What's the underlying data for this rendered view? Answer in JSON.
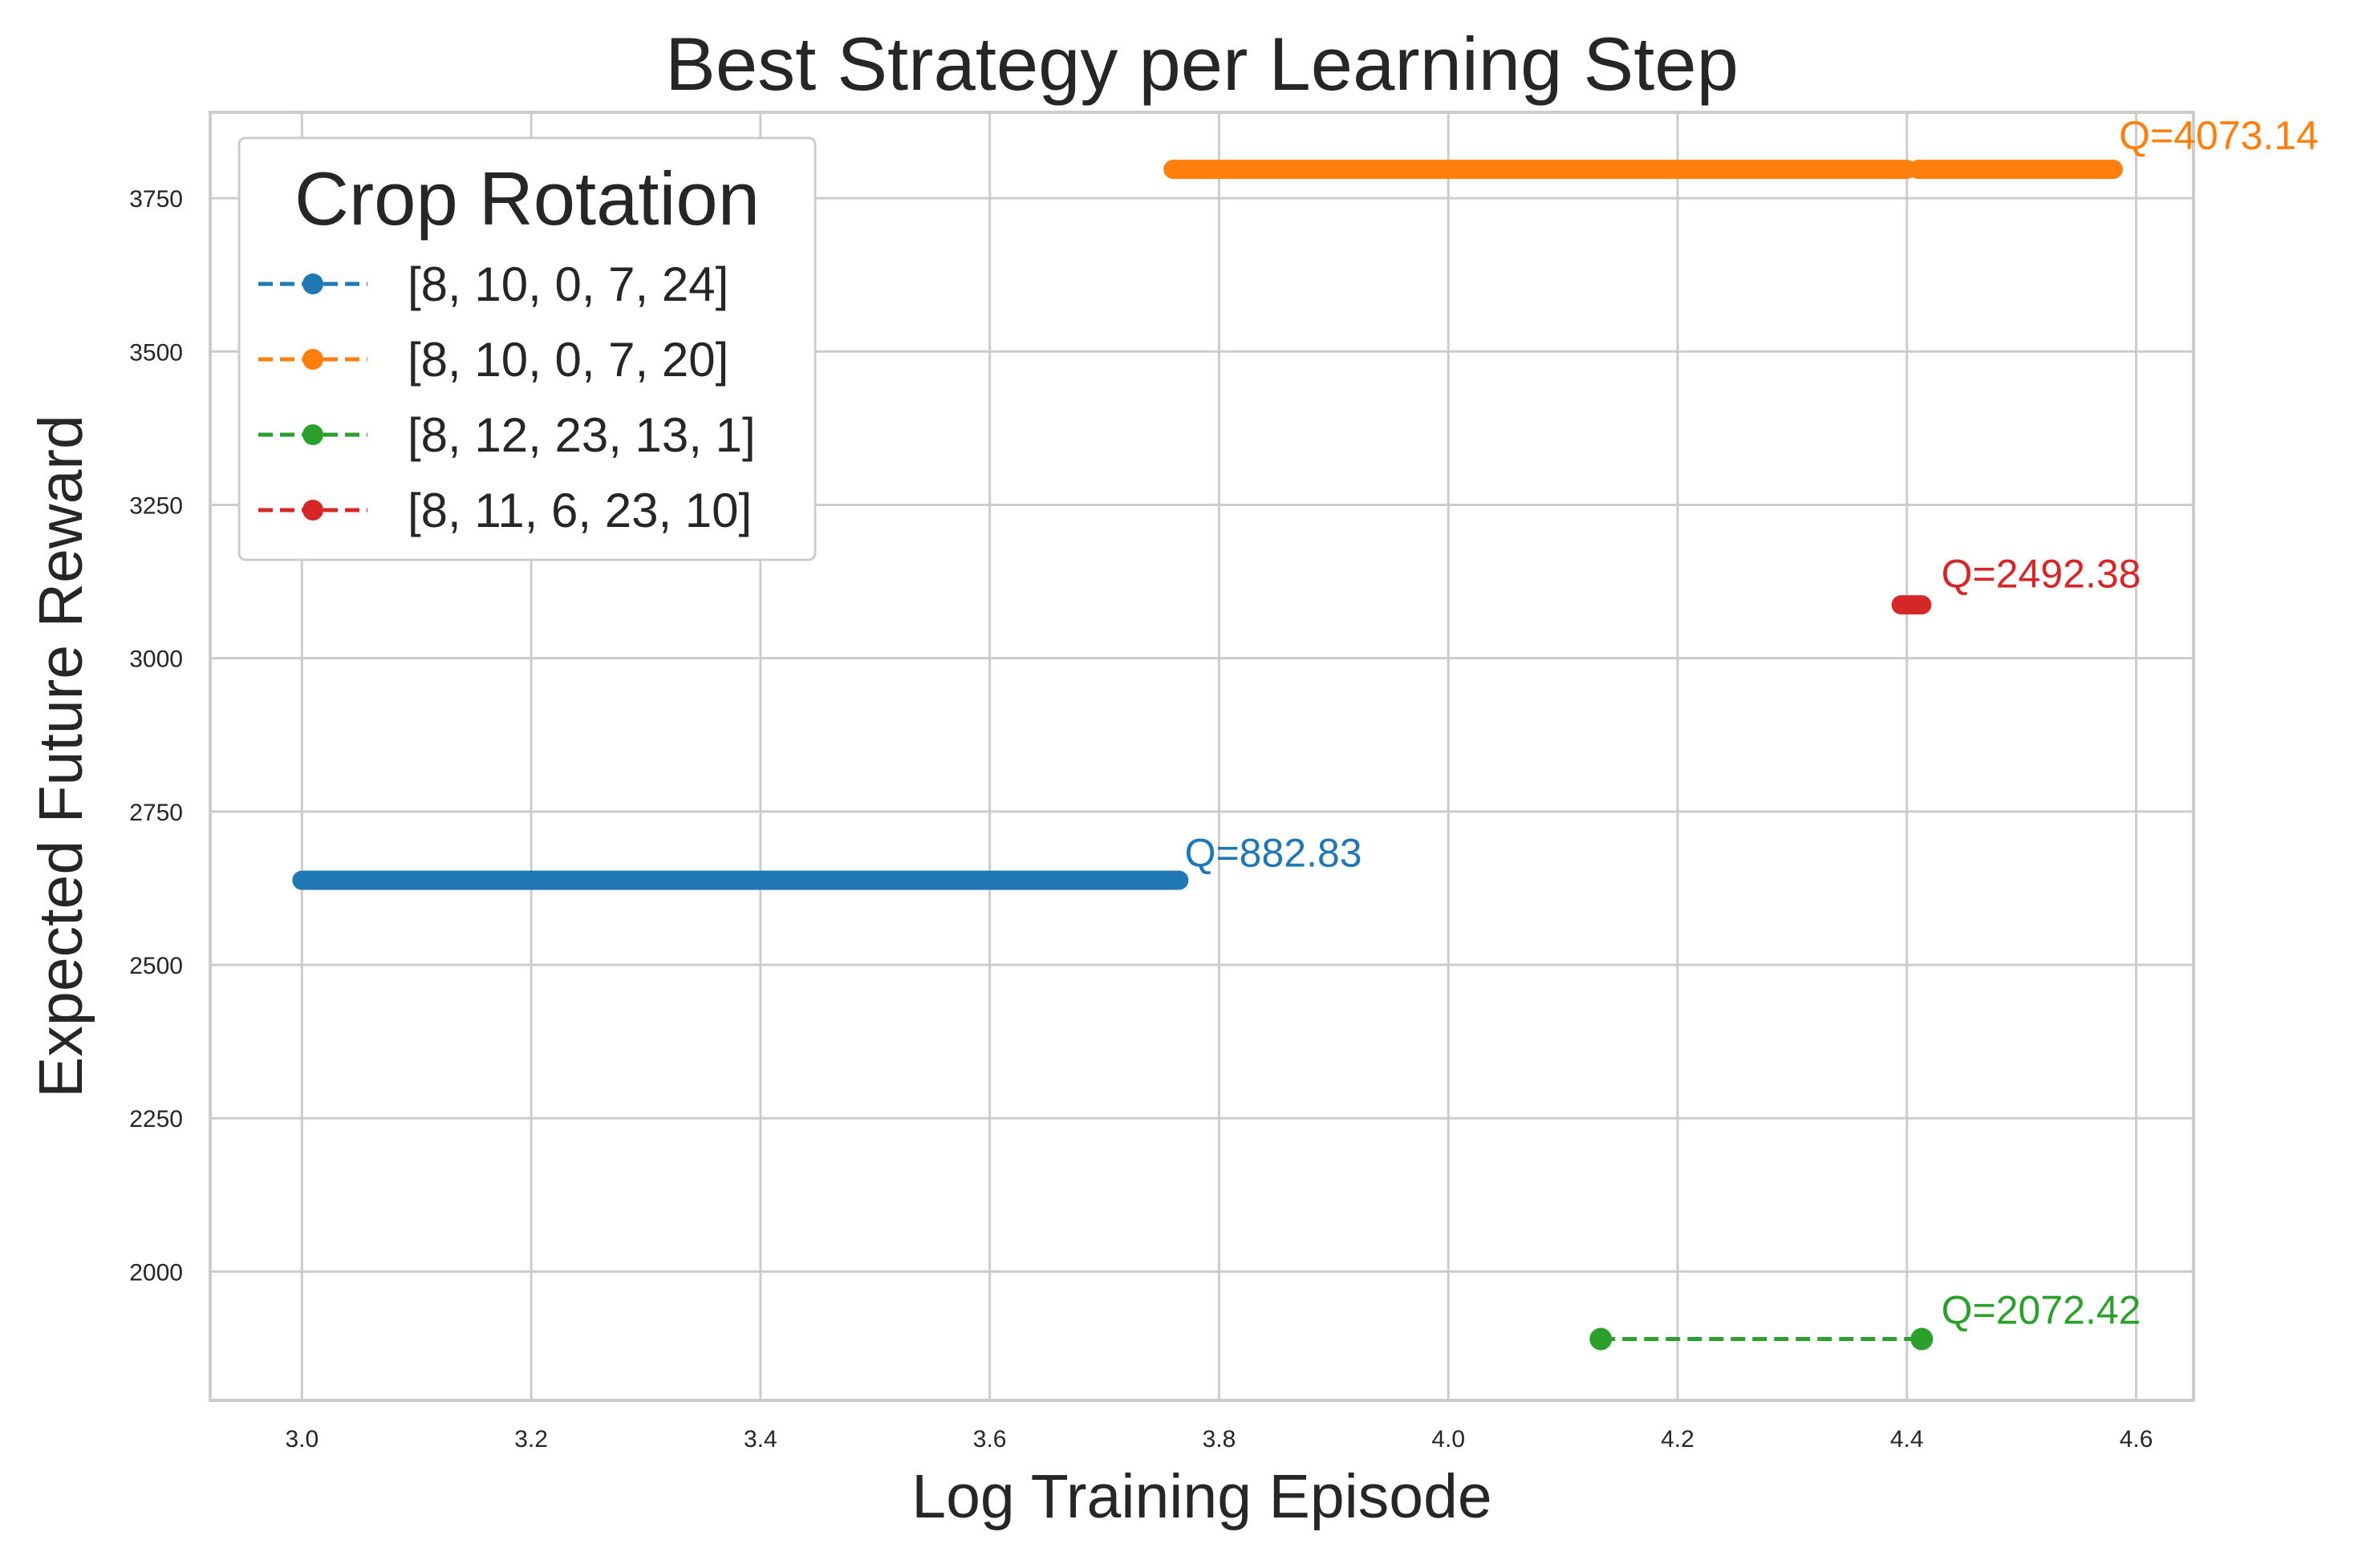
{
  "chart_data": {
    "type": "line",
    "title": "Best Strategy per Learning Step",
    "xlabel": "Log Training Episode",
    "ylabel": "Expected Future Reward",
    "xlim": [
      2.92,
      4.65
    ],
    "ylim": [
      1790,
      3890
    ],
    "x_ticks": [
      3.0,
      3.2,
      3.4,
      3.6,
      3.8,
      4.0,
      4.2,
      4.4,
      4.6
    ],
    "x_tick_labels": [
      "3.0",
      "3.2",
      "3.4",
      "3.6",
      "3.8",
      "4.0",
      "4.2",
      "4.4",
      "4.6"
    ],
    "y_ticks": [
      2000,
      2250,
      2500,
      2750,
      3000,
      3250,
      3500,
      3750
    ],
    "y_tick_labels": [
      "2000",
      "2250",
      "2500",
      "2750",
      "3000",
      "3250",
      "3500",
      "3750"
    ],
    "grid": true,
    "legend": {
      "title": "Crop Rotation",
      "placement": "upper-left"
    },
    "series": [
      {
        "name": "[8, 10, 0, 7, 24]",
        "color": "#1f77b4",
        "y": 2638,
        "x_segments": [
          [
            3.0,
            3.765
          ]
        ],
        "dense": true,
        "annotation": {
          "text": "Q=882.83",
          "x": 3.77,
          "y": 2660
        }
      },
      {
        "name": "[8, 10, 0, 7, 20]",
        "color": "#ff7f0e",
        "y": 3797,
        "x_segments": [
          [
            3.76,
            4.4
          ],
          [
            4.41,
            4.58
          ]
        ],
        "dense": true,
        "annotation": {
          "text": "Q=4073.14",
          "x": 4.585,
          "y": 3830
        }
      },
      {
        "name": "[8, 12, 23, 13, 1]",
        "color": "#2ca02c",
        "y": 1890,
        "x_segments": [
          [
            4.133,
            4.413
          ]
        ],
        "dense": false,
        "annotation": {
          "text": "Q=2072.42",
          "x": 4.43,
          "y": 1915
        }
      },
      {
        "name": "[8, 11, 6, 23, 10]",
        "color": "#d62728",
        "y": 3087,
        "x_segments": [
          [
            4.395,
            4.413
          ]
        ],
        "dense": true,
        "annotation": {
          "text": "Q=2492.38",
          "x": 4.43,
          "y": 3115
        }
      }
    ]
  }
}
